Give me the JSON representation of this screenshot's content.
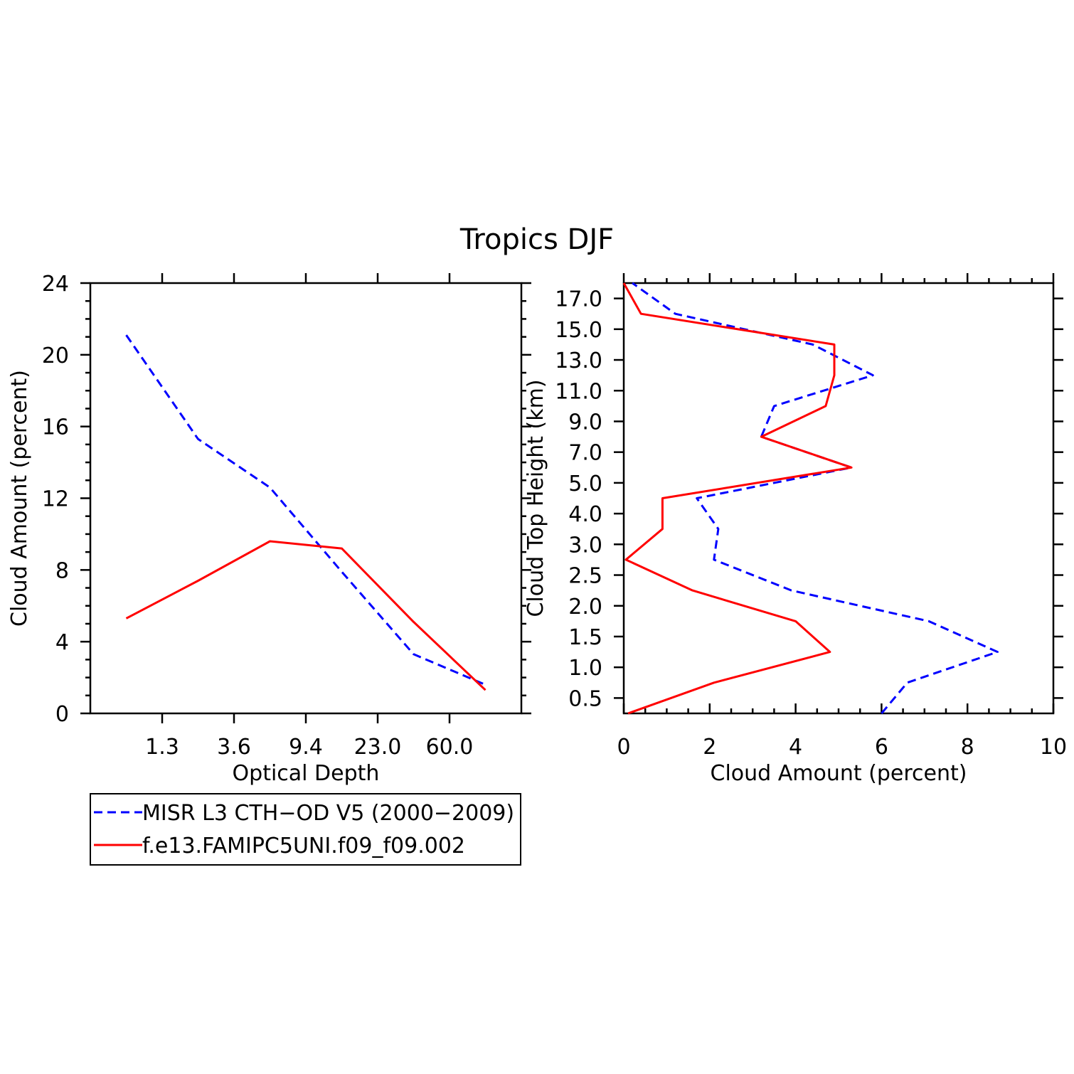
{
  "title": "Tropics DJF",
  "colors": {
    "misr": "#0000ff",
    "model": "#ff0000",
    "axis": "#000000"
  },
  "chart_data": [
    {
      "type": "line",
      "xlabel": "Optical Depth",
      "ylabel": "Cloud Amount (percent)",
      "x_tick_labels": [
        "1.3",
        "3.6",
        "9.4",
        "23.0",
        "60.0"
      ],
      "x_bins": 6,
      "ylim": [
        0,
        24
      ],
      "y_ticks": [
        0,
        4,
        8,
        12,
        16,
        20,
        24
      ],
      "series": [
        {
          "name": "MISR L3 CTH-OD V5 (2000-2009)",
          "style": "dashed",
          "color": "#0000ff",
          "values": [
            21.1,
            15.3,
            12.6,
            7.9,
            3.3,
            1.6
          ]
        },
        {
          "name": "f.e13.FAMIPC5UNI.f09_f09.002",
          "style": "solid",
          "color": "#ff0000",
          "values": [
            5.3,
            7.4,
            9.6,
            9.2,
            5.1,
            1.3
          ]
        }
      ]
    },
    {
      "type": "line",
      "xlabel": "Cloud Amount (percent)",
      "ylabel": "Cloud Top Height (km)",
      "xlim": [
        0,
        10
      ],
      "x_ticks": [
        0,
        2,
        4,
        6,
        8,
        10
      ],
      "y_tick_labels": [
        "0.5",
        "1.0",
        "1.5",
        "2.0",
        "2.5",
        "3.0",
        "4.0",
        "5.0",
        "7.0",
        "9.0",
        "11.0",
        "13.0",
        "15.0",
        "17.0"
      ],
      "y_levels": 14,
      "series": [
        {
          "name": "MISR L3 CTH-OD V5 (2000-2009)",
          "style": "dashed",
          "color": "#0000ff",
          "values": [
            6.0,
            6.6,
            8.7,
            7.1,
            3.9,
            2.1,
            2.2,
            1.7,
            5.3,
            3.2,
            3.5,
            5.8,
            4.4,
            1.2,
            0.2
          ]
        },
        {
          "name": "f.e13.FAMIPC5UNI.f09_f09.002",
          "style": "solid",
          "color": "#ff0000",
          "values": [
            0.1,
            2.1,
            4.8,
            4.0,
            1.6,
            0.05,
            0.9,
            0.9,
            5.3,
            3.2,
            4.7,
            4.9,
            4.9,
            0.4,
            0.0
          ]
        }
      ]
    }
  ],
  "legend": [
    {
      "label": "MISR L3 CTH−OD V5 (2000−2009)",
      "style": "dashed",
      "color": "#0000ff"
    },
    {
      "label": "f.e13.FAMIPC5UNI.f09_f09.002",
      "style": "solid",
      "color": "#ff0000"
    }
  ]
}
